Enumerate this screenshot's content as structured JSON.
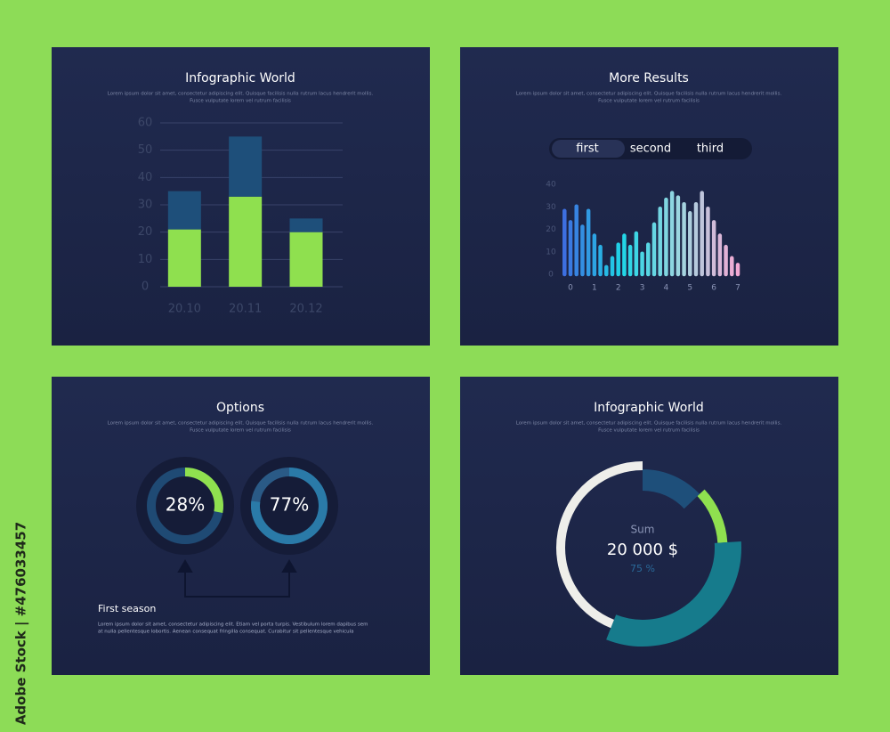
{
  "side_label": "Adobe Stock | #476033457",
  "chart_data": [
    {
      "type": "stacked-bar",
      "title": "Infographic World",
      "subtitle": [
        "Lorem ipsum dolor sit amet, consectetur adipiscing elit. Quisque facilisis nulla rutrum lacus hendrerit mollis.",
        "Fusce vulputate lorem vel rutrum facilisis"
      ],
      "categories": [
        "20.10",
        "20.11",
        "20.12"
      ],
      "series": [
        {
          "color": "#8fe04f",
          "values": [
            21,
            33,
            20
          ]
        },
        {
          "color": "#1e4f7a",
          "values": [
            14,
            22,
            5
          ]
        }
      ],
      "ylim": [
        0,
        60
      ],
      "yticks": [
        0,
        10,
        20,
        30,
        40,
        50,
        60
      ],
      "grid": true
    },
    {
      "type": "bar",
      "title": "More Results",
      "subtitle": [
        "Lorem ipsum dolor sit amet, consectetur adipiscing elit. Quisque facilisis nulla rutrum lacus hendrerit mollis.",
        "Fusce vulputate lorem vel rutrum facilisis"
      ],
      "options": [
        "first",
        "second",
        "third"
      ],
      "x": [
        -0.25,
        0,
        0.25,
        0.5,
        0.75,
        1,
        1.25,
        1.5,
        1.75,
        2,
        2.25,
        2.5,
        2.75,
        3,
        3.25,
        3.5,
        3.75,
        4,
        4.25,
        4.5,
        4.75,
        5,
        5.25,
        5.5,
        5.75,
        6,
        6.25,
        6.5,
        6.75,
        7
      ],
      "values": [
        29,
        24,
        31,
        22,
        29,
        18,
        13,
        4,
        8,
        14,
        18,
        13,
        19,
        10,
        14,
        23,
        30,
        34,
        37,
        35,
        32,
        28,
        32,
        37,
        30,
        24,
        18,
        13,
        8,
        5
      ],
      "color_stops": [
        "#3d6fe0",
        "#1fd6e6",
        "#9fd6e0",
        "#f4a9d4"
      ],
      "xlim": [
        -0.5,
        7.3
      ],
      "xticks": [
        0,
        1,
        2,
        3,
        4,
        5,
        6,
        7
      ],
      "ylim": [
        0,
        40
      ],
      "yticks": [
        0,
        10,
        20,
        30,
        40
      ]
    },
    {
      "type": "donut",
      "title": "Options",
      "subtitle": [
        "Lorem ipsum dolor sit amet, consectetur adipiscing elit. Quisque facilisis nulla rutrum lacus hendrerit mollis.",
        "Fusce vulputate lorem vel rutrum facilisis"
      ],
      "values": [
        28,
        77
      ],
      "value_labels": [
        "28%",
        "77%"
      ],
      "colors": [
        "#8fe04f",
        "#2a7aa8"
      ],
      "caption_title": "First season",
      "caption_text": [
        "Lorem ipsum dolor sit amet, consectetur adipiscing elit. Etiam vel porta turpis. Vestibulum lorem dapibus sem",
        "at nulla pellentesque lobortis. Aenean consequat fringilla consequat. Curabitur sit pellentesque vehicula"
      ]
    },
    {
      "type": "pie",
      "title": "Infographic World",
      "subtitle": [
        "Lorem ipsum dolor sit amet, consectetur adipiscing elit. Quisque facilisis nulla rutrum lacus hendrerit mollis.",
        "Fusce vulputate lorem vel rutrum facilisis"
      ],
      "values": [
        13,
        11,
        32,
        44
      ],
      "colors": [
        "#1e4f7a",
        "#8fe04f",
        "#167b8c",
        "#eeeeea"
      ],
      "center_label": "Sum",
      "center_value": "20 000 $",
      "center_percent": "75 %"
    }
  ]
}
